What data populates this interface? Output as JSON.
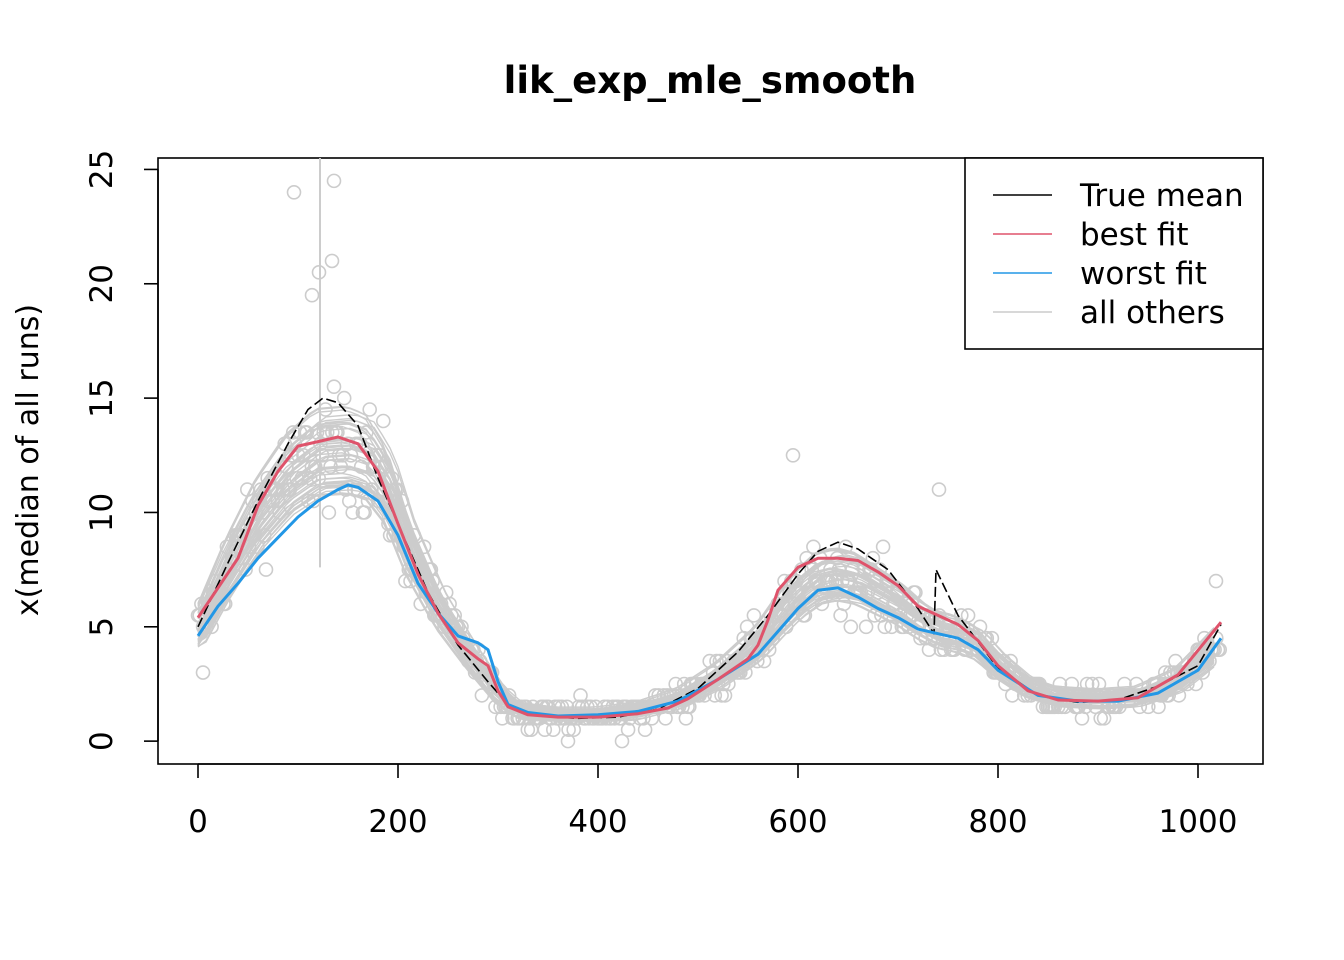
{
  "chart_data": {
    "type": "line",
    "title": "lik_exp_mle_smooth",
    "xlabel": "",
    "ylabel": "x(median of all runs)",
    "xlim": [
      -40,
      1065
    ],
    "ylim": [
      -1,
      25.5
    ],
    "xticks": [
      0,
      200,
      400,
      600,
      800,
      1000
    ],
    "xtick_labels": [
      "0",
      "200",
      "400",
      "600",
      "800",
      "1000"
    ],
    "yticks": [
      0,
      5,
      10,
      15,
      20,
      25
    ],
    "ytick_labels": [
      "0",
      "5",
      "10",
      "15",
      "20",
      "25"
    ],
    "grid": false,
    "legend": {
      "position": "top-right",
      "entries": [
        {
          "label": "True mean",
          "color": "#000000"
        },
        {
          "label": "best fit",
          "color": "#DF536B"
        },
        {
          "label": "worst fit",
          "color": "#2297E6"
        },
        {
          "label": "all others",
          "color": "#CCCCCC"
        }
      ]
    },
    "series": [
      {
        "name": "True mean",
        "color": "#000000",
        "style": "dashed",
        "x": [
          0,
          30,
          60,
          90,
          110,
          125,
          140,
          160,
          180,
          200,
          230,
          260,
          290,
          310,
          340,
          380,
          420,
          460,
          500,
          540,
          570,
          600,
          620,
          640,
          660,
          690,
          720,
          736,
          738,
          760,
          800,
          840,
          880,
          920,
          960,
          1000,
          1023
        ],
        "values": [
          5.0,
          7.8,
          10.5,
          13.0,
          14.5,
          15.0,
          14.8,
          13.8,
          11.5,
          9.5,
          6.5,
          4.2,
          2.6,
          1.6,
          1.1,
          1.0,
          1.05,
          1.4,
          2.3,
          3.9,
          5.5,
          7.3,
          8.3,
          8.7,
          8.4,
          7.5,
          5.8,
          4.7,
          7.5,
          5.5,
          3.2,
          2.0,
          1.7,
          1.8,
          2.4,
          3.3,
          5.1
        ]
      },
      {
        "name": "best fit",
        "color": "#DF536B",
        "style": "solid",
        "x": [
          0,
          20,
          40,
          60,
          80,
          100,
          120,
          140,
          160,
          180,
          200,
          220,
          240,
          260,
          280,
          290,
          300,
          310,
          330,
          360,
          400,
          440,
          470,
          490,
          520,
          550,
          560,
          570,
          580,
          600,
          620,
          640,
          660,
          680,
          700,
          720,
          740,
          760,
          780,
          800,
          830,
          860,
          900,
          940,
          980,
          1023
        ],
        "values": [
          5.4,
          6.7,
          8.0,
          10.3,
          11.8,
          12.9,
          13.1,
          13.3,
          13.0,
          11.8,
          9.5,
          7.3,
          5.6,
          4.3,
          3.6,
          3.3,
          2.2,
          1.5,
          1.15,
          1.05,
          1.05,
          1.2,
          1.45,
          1.85,
          2.7,
          3.6,
          4.2,
          5.3,
          6.6,
          7.6,
          8.0,
          8.0,
          7.9,
          7.4,
          6.8,
          5.9,
          5.5,
          5.1,
          4.4,
          3.3,
          2.2,
          1.8,
          1.75,
          1.9,
          2.9,
          5.2
        ]
      },
      {
        "name": "worst fit",
        "color": "#2297E6",
        "style": "solid",
        "x": [
          0,
          20,
          40,
          60,
          80,
          100,
          120,
          140,
          150,
          160,
          180,
          200,
          220,
          240,
          260,
          280,
          290,
          300,
          310,
          330,
          360,
          400,
          440,
          480,
          520,
          560,
          580,
          600,
          620,
          640,
          660,
          680,
          700,
          720,
          740,
          760,
          780,
          800,
          840,
          880,
          920,
          960,
          1000,
          1023
        ],
        "values": [
          4.6,
          5.9,
          6.9,
          8.0,
          8.9,
          9.8,
          10.5,
          11.0,
          11.2,
          11.1,
          10.5,
          9.0,
          6.9,
          5.6,
          4.6,
          4.3,
          4.0,
          2.6,
          1.6,
          1.25,
          1.1,
          1.15,
          1.3,
          1.75,
          2.7,
          3.8,
          4.8,
          5.8,
          6.6,
          6.7,
          6.3,
          5.8,
          5.4,
          4.9,
          4.7,
          4.5,
          4.0,
          3.1,
          2.0,
          1.75,
          1.75,
          2.1,
          3.1,
          4.5
        ]
      }
    ],
    "others": {
      "name": "all others",
      "color": "#CCCCCC",
      "style": "solid",
      "x": [
        0,
        30,
        60,
        90,
        120,
        150,
        170,
        190,
        210,
        240,
        270,
        300,
        320,
        360,
        400,
        440,
        480,
        520,
        560,
        580,
        600,
        620,
        640,
        660,
        680,
        700,
        720,
        740,
        760,
        780,
        800,
        830,
        860,
        900,
        940,
        980,
        1023
      ],
      "values": [
        4.8,
        7.5,
        9.8,
        11.5,
        12.5,
        12.6,
        12.3,
        11.0,
        8.5,
        5.8,
        3.8,
        2.0,
        1.3,
        1.1,
        1.1,
        1.3,
        1.8,
        2.8,
        4.2,
        5.3,
        6.3,
        7.0,
        7.2,
        7.0,
        6.5,
        6.0,
        5.3,
        4.8,
        4.6,
        4.2,
        3.3,
        2.3,
        1.9,
        1.8,
        1.9,
        2.6,
        4.3
      ],
      "vertical_marker": {
        "x": 122,
        "y_from": 7.6,
        "y_to": 25.5
      }
    },
    "observations": {
      "color": "#CCCCCC",
      "notable_points": [
        {
          "x": 96,
          "y": 24.0
        },
        {
          "x": 136,
          "y": 24.5
        },
        {
          "x": 134,
          "y": 21.0
        },
        {
          "x": 121,
          "y": 20.5
        },
        {
          "x": 114,
          "y": 19.5
        },
        {
          "x": 595,
          "y": 12.5
        },
        {
          "x": 741,
          "y": 11.0
        },
        {
          "x": 1018,
          "y": 7.0
        },
        {
          "x": 5,
          "y": 3.0
        },
        {
          "x": 424,
          "y": 0.0
        },
        {
          "x": 370,
          "y": 0.0
        }
      ]
    }
  }
}
